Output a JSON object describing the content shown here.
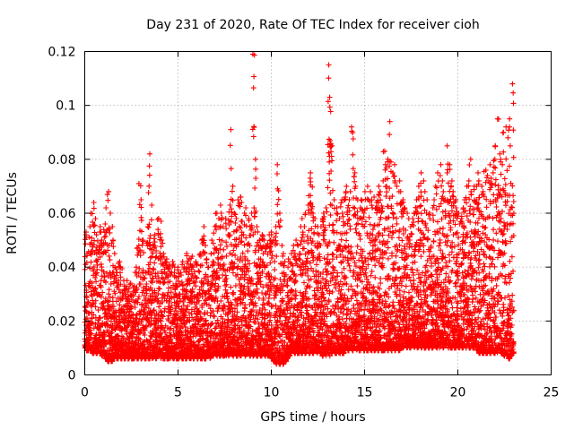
{
  "chart_data": {
    "type": "scatter",
    "title": "Day 231 of 2020, Rate Of TEC Index for receiver cioh",
    "xlabel": "GPS time / hours",
    "ylabel": "ROTI / TECUs",
    "xlim": [
      0,
      25
    ],
    "ylim": [
      0,
      0.12
    ],
    "x_ticks": [
      0,
      5,
      10,
      15,
      20,
      25
    ],
    "x_tick_labels": [
      "0",
      "5",
      "10",
      "15",
      "20",
      "25"
    ],
    "y_ticks": [
      0,
      0.02,
      0.04,
      0.06,
      0.08,
      0.1,
      0.12
    ],
    "y_tick_labels": [
      "0",
      "0.02",
      "0.04",
      "0.06",
      "0.08",
      "0.1",
      "0.12"
    ],
    "grid": true,
    "marker": "+",
    "series": [
      {
        "name": "ROTI",
        "color": "#ff0000",
        "x": [
          0.0,
          0.1,
          0.2,
          0.3,
          0.4,
          0.5,
          0.6,
          0.7,
          0.8,
          0.9,
          1.0,
          1.1,
          1.2,
          1.3,
          1.4,
          1.5,
          1.6,
          1.7,
          1.8,
          1.9,
          2.0,
          2.1,
          2.2,
          2.3,
          2.4,
          2.5,
          2.6,
          2.7,
          2.8,
          2.9,
          3.0,
          3.1,
          3.2,
          3.3,
          3.4,
          3.5,
          3.6,
          3.7,
          3.8,
          3.9,
          4.0,
          4.1,
          4.2,
          4.3,
          4.4,
          4.5,
          4.6,
          4.7,
          4.8,
          4.9,
          5.0,
          5.1,
          5.2,
          5.3,
          5.4,
          5.5,
          5.6,
          5.7,
          5.8,
          5.9,
          6.0,
          6.1,
          6.2,
          6.3,
          6.4,
          6.5,
          6.6,
          6.7,
          6.8,
          6.9,
          7.0,
          7.1,
          7.2,
          7.3,
          7.4,
          7.5,
          7.6,
          7.7,
          7.8,
          7.9,
          8.0,
          8.1,
          8.2,
          8.3,
          8.4,
          8.5,
          8.6,
          8.7,
          8.8,
          8.9,
          9.0,
          9.1,
          9.2,
          9.3,
          9.4,
          9.5,
          9.6,
          9.7,
          9.8,
          9.9,
          10.0,
          10.1,
          10.2,
          10.3,
          10.4,
          10.5,
          10.6,
          10.7,
          10.8,
          10.9,
          11.0,
          11.1,
          11.2,
          11.3,
          11.4,
          11.5,
          11.6,
          11.7,
          11.8,
          11.9,
          12.0,
          12.1,
          12.2,
          12.3,
          12.4,
          12.5,
          12.6,
          12.7,
          12.8,
          12.9,
          13.0,
          13.1,
          13.2,
          13.3,
          13.4,
          13.5,
          13.6,
          13.7,
          13.8,
          13.9,
          14.0,
          14.1,
          14.2,
          14.3,
          14.4,
          14.5,
          14.6,
          14.7,
          14.8,
          14.9,
          15.0,
          15.1,
          15.2,
          15.3,
          15.4,
          15.5,
          15.6,
          15.7,
          15.8,
          15.9,
          16.0,
          16.1,
          16.2,
          16.3,
          16.4,
          16.5,
          16.6,
          16.7,
          16.8,
          16.9,
          17.0,
          17.1,
          17.2,
          17.3,
          17.4,
          17.5,
          17.6,
          17.7,
          17.8,
          17.9,
          18.0,
          18.1,
          18.2,
          18.3,
          18.4,
          18.5,
          18.6,
          18.7,
          18.8,
          18.9,
          19.0,
          19.1,
          19.2,
          19.3,
          19.4,
          19.5,
          19.6,
          19.7,
          19.8,
          19.9,
          20.0,
          20.1,
          20.2,
          20.3,
          20.4,
          20.5,
          20.6,
          20.7,
          20.8,
          20.9,
          21.0,
          21.1,
          21.2,
          21.3,
          21.4,
          21.5,
          21.6,
          21.7,
          21.8,
          21.9,
          22.0,
          22.1,
          22.2,
          22.3,
          22.4,
          22.5,
          22.6,
          22.7,
          22.8,
          22.9,
          23.0,
          23.1,
          23.2,
          23.3,
          23.4,
          23.5,
          23.6,
          23.7,
          23.8,
          23.9
        ],
        "y_min": [
          0.01,
          0.009,
          0.01,
          0.009,
          0.008,
          0.009,
          0.008,
          0.009,
          0.008,
          0.007,
          0.008,
          0.006,
          0.005,
          0.006,
          0.005,
          0.006,
          0.007,
          0.006,
          0.007,
          0.006,
          0.007,
          0.006,
          0.007,
          0.006,
          0.007,
          0.006,
          0.006,
          0.007,
          0.006,
          0.007,
          0.006,
          0.007,
          0.006,
          0.007,
          0.006,
          0.007,
          0.006,
          0.007,
          0.006,
          0.007,
          0.006,
          0.007,
          0.006,
          0.007,
          0.006,
          0.006,
          0.007,
          0.006,
          0.007,
          0.006,
          0.006,
          0.007,
          0.006,
          0.007,
          0.006,
          0.007,
          0.006,
          0.007,
          0.006,
          0.007,
          0.006,
          0.007,
          0.006,
          0.007,
          0.006,
          0.007,
          0.007,
          0.006,
          0.007,
          0.008,
          0.007,
          0.008,
          0.007,
          0.008,
          0.007,
          0.007,
          0.008,
          0.007,
          0.008,
          0.007,
          0.008,
          0.007,
          0.008,
          0.007,
          0.008,
          0.008,
          0.007,
          0.008,
          0.007,
          0.008,
          0.007,
          0.008,
          0.007,
          0.008,
          0.007,
          0.008,
          0.007,
          0.008,
          0.007,
          0.008,
          0.006,
          0.005,
          0.004,
          0.005,
          0.004,
          0.005,
          0.004,
          0.005,
          0.006,
          0.007,
          0.008,
          0.009,
          0.008,
          0.009,
          0.008,
          0.009,
          0.008,
          0.009,
          0.008,
          0.009,
          0.008,
          0.009,
          0.008,
          0.009,
          0.008,
          0.009,
          0.008,
          0.007,
          0.008,
          0.007,
          0.008,
          0.007,
          0.008,
          0.009,
          0.008,
          0.009,
          0.008,
          0.009,
          0.008,
          0.009,
          0.01,
          0.009,
          0.01,
          0.009,
          0.01,
          0.009,
          0.01,
          0.009,
          0.01,
          0.009,
          0.01,
          0.009,
          0.01,
          0.009,
          0.01,
          0.009,
          0.01,
          0.009,
          0.01,
          0.009,
          0.009,
          0.01,
          0.009,
          0.01,
          0.009,
          0.01,
          0.009,
          0.01,
          0.009,
          0.01,
          0.01,
          0.011,
          0.01,
          0.011,
          0.01,
          0.011,
          0.01,
          0.011,
          0.01,
          0.011,
          0.01,
          0.011,
          0.01,
          0.011,
          0.01,
          0.011,
          0.01,
          0.011,
          0.01,
          0.011,
          0.01,
          0.011,
          0.01,
          0.011,
          0.01,
          0.011,
          0.01,
          0.011,
          0.01,
          0.011,
          0.01,
          0.011,
          0.01,
          0.011,
          0.01,
          0.011,
          0.01,
          0.011,
          0.01,
          0.011,
          0.009,
          0.008,
          0.009,
          0.008,
          0.009,
          0.008,
          0.009,
          0.008,
          0.009,
          0.008,
          0.009,
          0.008,
          0.009,
          0.008,
          0.007,
          0.008,
          0.007,
          0.006,
          0.007,
          0.008
        ],
        "y_max": [
          0.053,
          0.045,
          0.055,
          0.06,
          0.064,
          0.058,
          0.052,
          0.048,
          0.055,
          0.05,
          0.056,
          0.062,
          0.068,
          0.06,
          0.055,
          0.05,
          0.045,
          0.038,
          0.042,
          0.04,
          0.035,
          0.033,
          0.035,
          0.032,
          0.034,
          0.031,
          0.033,
          0.04,
          0.048,
          0.071,
          0.065,
          0.05,
          0.038,
          0.055,
          0.082,
          0.063,
          0.048,
          0.052,
          0.046,
          0.058,
          0.057,
          0.05,
          0.045,
          0.043,
          0.04,
          0.041,
          0.038,
          0.042,
          0.04,
          0.039,
          0.04,
          0.038,
          0.042,
          0.04,
          0.045,
          0.043,
          0.041,
          0.044,
          0.04,
          0.042,
          0.041,
          0.045,
          0.05,
          0.055,
          0.048,
          0.043,
          0.04,
          0.045,
          0.05,
          0.055,
          0.06,
          0.058,
          0.063,
          0.06,
          0.055,
          0.058,
          0.052,
          0.063,
          0.091,
          0.07,
          0.06,
          0.058,
          0.065,
          0.066,
          0.064,
          0.06,
          0.062,
          0.058,
          0.055,
          0.06,
          0.119,
          0.08,
          0.055,
          0.05,
          0.048,
          0.052,
          0.05,
          0.048,
          0.052,
          0.05,
          0.053,
          0.05,
          0.055,
          0.078,
          0.06,
          0.048,
          0.045,
          0.042,
          0.04,
          0.043,
          0.045,
          0.048,
          0.045,
          0.05,
          0.048,
          0.055,
          0.058,
          0.055,
          0.06,
          0.063,
          0.073,
          0.075,
          0.06,
          0.058,
          0.055,
          0.052,
          0.055,
          0.058,
          0.06,
          0.062,
          0.115,
          0.103,
          0.085,
          0.065,
          0.06,
          0.062,
          0.058,
          0.065,
          0.06,
          0.068,
          0.07,
          0.065,
          0.068,
          0.092,
          0.075,
          0.07,
          0.065,
          0.062,
          0.065,
          0.06,
          0.068,
          0.07,
          0.065,
          0.068,
          0.062,
          0.066,
          0.064,
          0.07,
          0.068,
          0.072,
          0.083,
          0.078,
          0.08,
          0.094,
          0.079,
          0.075,
          0.078,
          0.07,
          0.072,
          0.068,
          0.065,
          0.062,
          0.06,
          0.058,
          0.055,
          0.058,
          0.06,
          0.065,
          0.062,
          0.07,
          0.075,
          0.072,
          0.068,
          0.065,
          0.06,
          0.058,
          0.062,
          0.065,
          0.07,
          0.075,
          0.078,
          0.072,
          0.068,
          0.065,
          0.085,
          0.078,
          0.072,
          0.068,
          0.065,
          0.062,
          0.06,
          0.058,
          0.062,
          0.065,
          0.07,
          0.072,
          0.08,
          0.068,
          0.07,
          0.065,
          0.075,
          0.072,
          0.07,
          0.068,
          0.076,
          0.074,
          0.072,
          0.078,
          0.075,
          0.08,
          0.085,
          0.095,
          0.082,
          0.078,
          0.09,
          0.092,
          0.088,
          0.095,
          0.085,
          0.108,
          0.113,
          0.099,
          0.09,
          0.085
        ]
      }
    ]
  }
}
